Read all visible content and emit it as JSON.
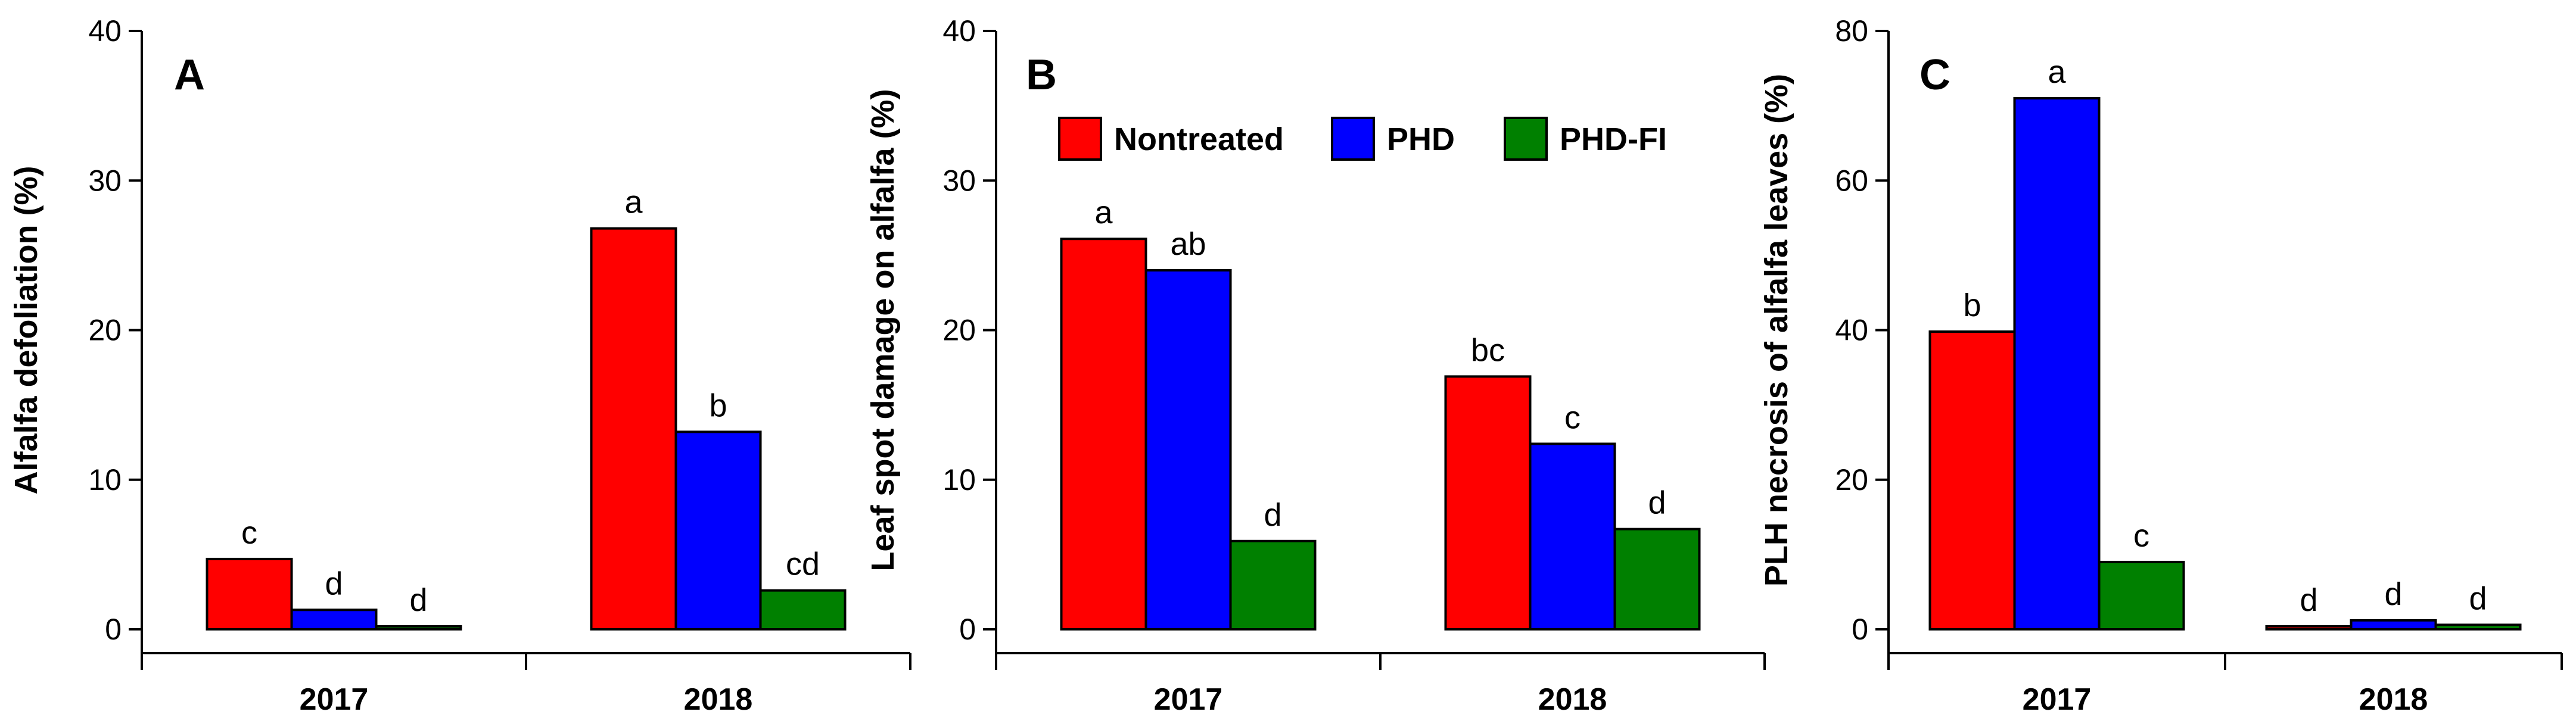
{
  "chart_data": [
    {
      "type": "bar",
      "panel_label": "A",
      "ylabel": "Alfalfa defoliation (%)",
      "ylim": [
        0,
        40
      ],
      "yticks": [
        0,
        10,
        20,
        30,
        40
      ],
      "categories": [
        "2017",
        "2018"
      ],
      "series": [
        {
          "name": "Nontreated",
          "color": "#ff0000",
          "values": [
            4.7,
            26.8
          ],
          "letters": [
            "c",
            "a"
          ]
        },
        {
          "name": "PHD",
          "color": "#0000ff",
          "values": [
            1.3,
            13.2
          ],
          "letters": [
            "d",
            "b"
          ]
        },
        {
          "name": "PHD-FI",
          "color": "#008000",
          "values": [
            0.2,
            2.6
          ],
          "letters": [
            "d",
            "cd"
          ]
        }
      ]
    },
    {
      "type": "bar",
      "panel_label": "B",
      "ylabel": "Leaf spot damage on alfalfa (%)",
      "ylim": [
        0,
        40
      ],
      "yticks": [
        0,
        10,
        20,
        30,
        40
      ],
      "categories": [
        "2017",
        "2018"
      ],
      "legend": [
        "Nontreated",
        "PHD",
        "PHD-FI"
      ],
      "series": [
        {
          "name": "Nontreated",
          "color": "#ff0000",
          "values": [
            26.1,
            16.9
          ],
          "letters": [
            "a",
            "bc"
          ]
        },
        {
          "name": "PHD",
          "color": "#0000ff",
          "values": [
            24.0,
            12.4
          ],
          "letters": [
            "ab",
            "c"
          ]
        },
        {
          "name": "PHD-FI",
          "color": "#008000",
          "values": [
            5.9,
            6.7
          ],
          "letters": [
            "d",
            "d"
          ]
        }
      ]
    },
    {
      "type": "bar",
      "panel_label": "C",
      "ylabel": "PLH necrosis of alfalfa leaves (%)",
      "ylim": [
        0,
        80
      ],
      "yticks": [
        0,
        20,
        40,
        60,
        80
      ],
      "categories": [
        "2017",
        "2018"
      ],
      "series": [
        {
          "name": "Nontreated",
          "color": "#ff0000",
          "values": [
            39.8,
            0.4
          ],
          "letters": [
            "b",
            "d"
          ]
        },
        {
          "name": "PHD",
          "color": "#0000ff",
          "values": [
            71.0,
            1.2
          ],
          "letters": [
            "a",
            "d"
          ]
        },
        {
          "name": "PHD-FI",
          "color": "#008000",
          "values": [
            9.0,
            0.6
          ],
          "letters": [
            "c",
            "d"
          ]
        }
      ]
    }
  ]
}
